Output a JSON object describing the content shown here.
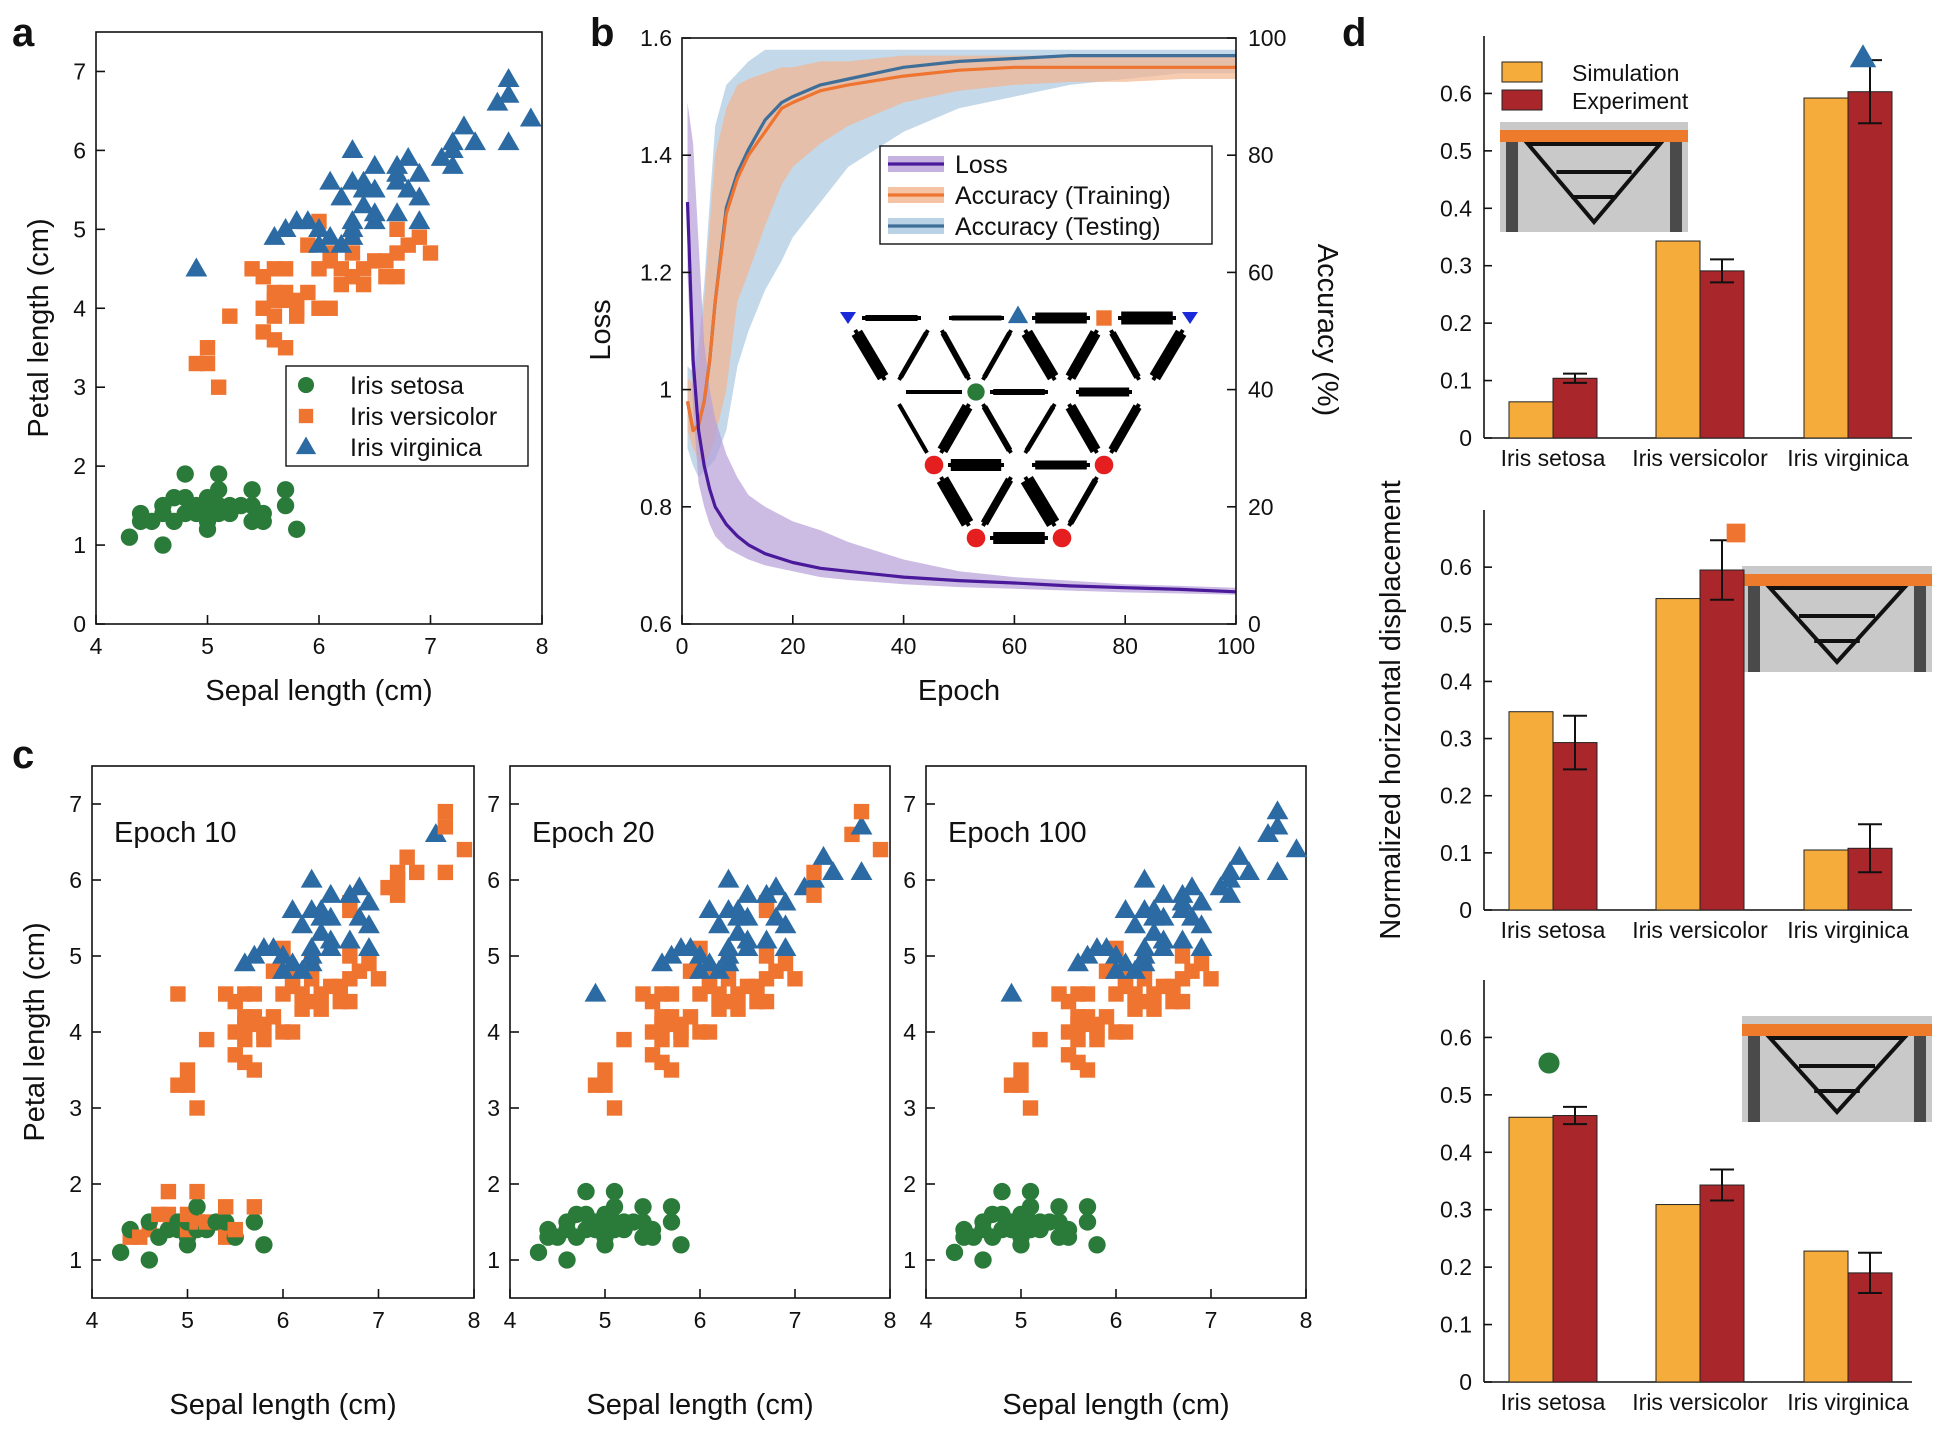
{
  "colors": {
    "setosa": "#2a7a3a",
    "versicolor": "#ee7430",
    "virginica": "#2b6aa3",
    "loss": "#4a1a9a",
    "loss_band": "#b79fd8",
    "acc_train": "#ee7430",
    "acc_train_band": "#f3b58e",
    "acc_test": "#3f6f99",
    "acc_test_band": "#a9c7df",
    "simulation": "#f5ac3a",
    "experiment": "#a9262a",
    "node_red": "#e51e20"
  },
  "panels": {
    "a": "a",
    "b": "b",
    "c": "c",
    "d": "d"
  },
  "chart_data": [
    {
      "id": "a",
      "type": "scatter",
      "title": "",
      "xlabel": "Sepal length (cm)",
      "ylabel": "Petal length (cm)",
      "xlim": [
        4,
        8
      ],
      "ylim": [
        0,
        7.5
      ],
      "xticks": [
        "4",
        "5",
        "6",
        "7",
        "8"
      ],
      "yticks": [
        "0",
        "1",
        "2",
        "3",
        "4",
        "5",
        "6",
        "7"
      ],
      "legend": [
        "Iris setosa",
        "Iris versicolor",
        "Iris virginica"
      ],
      "legend_position": "center-right",
      "series": [
        {
          "name": "Iris setosa",
          "marker": "circle",
          "points": [
            [
              4.3,
              1.1
            ],
            [
              4.4,
              1.3
            ],
            [
              4.4,
              1.4
            ],
            [
              4.5,
              1.3
            ],
            [
              4.6,
              1.0
            ],
            [
              4.6,
              1.4
            ],
            [
              4.6,
              1.5
            ],
            [
              4.7,
              1.3
            ],
            [
              4.7,
              1.6
            ],
            [
              4.8,
              1.4
            ],
            [
              4.8,
              1.6
            ],
            [
              4.8,
              1.9
            ],
            [
              4.9,
              1.4
            ],
            [
              4.9,
              1.5
            ],
            [
              5.0,
              1.2
            ],
            [
              5.0,
              1.3
            ],
            [
              5.0,
              1.4
            ],
            [
              5.0,
              1.5
            ],
            [
              5.0,
              1.6
            ],
            [
              5.1,
              1.4
            ],
            [
              5.1,
              1.5
            ],
            [
              5.1,
              1.7
            ],
            [
              5.1,
              1.9
            ],
            [
              5.2,
              1.4
            ],
            [
              5.2,
              1.5
            ],
            [
              5.3,
              1.5
            ],
            [
              5.4,
              1.3
            ],
            [
              5.4,
              1.5
            ],
            [
              5.4,
              1.7
            ],
            [
              5.5,
              1.3
            ],
            [
              5.5,
              1.4
            ],
            [
              5.7,
              1.5
            ],
            [
              5.7,
              1.7
            ],
            [
              5.8,
              1.2
            ]
          ]
        },
        {
          "name": "Iris versicolor",
          "marker": "square",
          "points": [
            [
              4.9,
              3.3
            ],
            [
              5.0,
              3.3
            ],
            [
              5.0,
              3.5
            ],
            [
              5.1,
              3.0
            ],
            [
              5.2,
              3.9
            ],
            [
              5.4,
              4.5
            ],
            [
              5.5,
              3.7
            ],
            [
              5.5,
              4.0
            ],
            [
              5.5,
              4.4
            ],
            [
              5.6,
              3.6
            ],
            [
              5.6,
              3.9
            ],
            [
              5.6,
              4.1
            ],
            [
              5.6,
              4.2
            ],
            [
              5.6,
              4.5
            ],
            [
              5.7,
              3.5
            ],
            [
              5.7,
              4.1
            ],
            [
              5.7,
              4.2
            ],
            [
              5.7,
              4.5
            ],
            [
              5.8,
              3.9
            ],
            [
              5.8,
              4.0
            ],
            [
              5.8,
              4.1
            ],
            [
              5.9,
              4.2
            ],
            [
              5.9,
              4.8
            ],
            [
              6.0,
              4.0
            ],
            [
              6.0,
              4.5
            ],
            [
              6.0,
              5.1
            ],
            [
              6.1,
              4.0
            ],
            [
              6.1,
              4.6
            ],
            [
              6.1,
              4.7
            ],
            [
              6.2,
              4.3
            ],
            [
              6.2,
              4.5
            ],
            [
              6.3,
              4.4
            ],
            [
              6.3,
              4.7
            ],
            [
              6.3,
              4.9
            ],
            [
              6.4,
              4.3
            ],
            [
              6.4,
              4.5
            ],
            [
              6.5,
              4.6
            ],
            [
              6.6,
              4.4
            ],
            [
              6.6,
              4.6
            ],
            [
              6.7,
              4.4
            ],
            [
              6.7,
              4.7
            ],
            [
              6.7,
              5.0
            ],
            [
              6.8,
              4.8
            ],
            [
              6.9,
              4.9
            ],
            [
              7.0,
              4.7
            ]
          ]
        },
        {
          "name": "Iris virginica",
          "marker": "triangle",
          "points": [
            [
              4.9,
              4.5
            ],
            [
              5.6,
              4.9
            ],
            [
              5.7,
              5.0
            ],
            [
              5.8,
              5.1
            ],
            [
              5.9,
              5.1
            ],
            [
              6.0,
              4.8
            ],
            [
              6.0,
              5.0
            ],
            [
              6.1,
              4.9
            ],
            [
              6.1,
              5.6
            ],
            [
              6.2,
              4.8
            ],
            [
              6.2,
              5.4
            ],
            [
              6.3,
              4.9
            ],
            [
              6.3,
              5.0
            ],
            [
              6.3,
              5.1
            ],
            [
              6.3,
              5.6
            ],
            [
              6.3,
              6.0
            ],
            [
              6.4,
              5.3
            ],
            [
              6.4,
              5.5
            ],
            [
              6.4,
              5.6
            ],
            [
              6.5,
              5.1
            ],
            [
              6.5,
              5.2
            ],
            [
              6.5,
              5.5
            ],
            [
              6.5,
              5.8
            ],
            [
              6.7,
              5.2
            ],
            [
              6.7,
              5.6
            ],
            [
              6.7,
              5.7
            ],
            [
              6.7,
              5.8
            ],
            [
              6.8,
              5.5
            ],
            [
              6.8,
              5.9
            ],
            [
              6.9,
              5.1
            ],
            [
              6.9,
              5.4
            ],
            [
              6.9,
              5.7
            ],
            [
              7.1,
              5.9
            ],
            [
              7.2,
              5.8
            ],
            [
              7.2,
              6.0
            ],
            [
              7.2,
              6.1
            ],
            [
              7.3,
              6.3
            ],
            [
              7.4,
              6.1
            ],
            [
              7.6,
              6.6
            ],
            [
              7.7,
              6.1
            ],
            [
              7.7,
              6.7
            ],
            [
              7.7,
              6.9
            ],
            [
              7.9,
              6.4
            ]
          ]
        }
      ]
    },
    {
      "id": "b",
      "type": "line",
      "xlabel": "Epoch",
      "ylabel": "Loss",
      "ylabel_right": "Accuracy (%)",
      "xlim": [
        0,
        100
      ],
      "ylim": [
        0.6,
        1.6
      ],
      "ylim_right": [
        0,
        100
      ],
      "xticks": [
        "0",
        "20",
        "40",
        "60",
        "80",
        "100"
      ],
      "yticks": [
        "0.6",
        "0.8",
        "1",
        "1.2",
        "1.4",
        "1.6"
      ],
      "yticks_right": [
        "0",
        "20",
        "40",
        "60",
        "80",
        "100"
      ],
      "legend": [
        "Loss",
        "Accuracy (Training)",
        "Accuracy (Testing)"
      ],
      "legend_position": "center-right",
      "series": [
        {
          "name": "Loss",
          "axis": "left",
          "x": [
            1,
            2,
            3,
            4,
            5,
            6,
            8,
            10,
            12,
            15,
            20,
            25,
            30,
            40,
            50,
            60,
            70,
            80,
            90,
            100
          ],
          "y": [
            1.32,
            1.05,
            0.93,
            0.87,
            0.83,
            0.8,
            0.77,
            0.75,
            0.735,
            0.72,
            0.705,
            0.695,
            0.69,
            0.68,
            0.674,
            0.67,
            0.665,
            0.662,
            0.659,
            0.655
          ],
          "band_upper": [
            1.49,
            1.42,
            1.25,
            1.08,
            1.0,
            0.95,
            0.89,
            0.85,
            0.82,
            0.8,
            0.775,
            0.76,
            0.74,
            0.71,
            0.69,
            0.68,
            0.674,
            0.668,
            0.665,
            0.662
          ],
          "band_lower": [
            1.2,
            0.97,
            0.84,
            0.8,
            0.77,
            0.75,
            0.73,
            0.72,
            0.71,
            0.7,
            0.69,
            0.68,
            0.675,
            0.668,
            0.663,
            0.66,
            0.657,
            0.654,
            0.652,
            0.65
          ]
        },
        {
          "name": "Accuracy (Training)",
          "axis": "right",
          "x": [
            1,
            2,
            3,
            4,
            5,
            6,
            8,
            10,
            12,
            15,
            18,
            20,
            25,
            30,
            40,
            50,
            60,
            70,
            80,
            90,
            100
          ],
          "y": [
            38,
            33,
            34,
            38,
            45,
            55,
            70,
            76,
            80,
            84,
            88,
            89,
            91,
            92,
            93.5,
            94.5,
            95,
            95,
            95,
            95,
            95
          ],
          "band_upper": [
            42,
            41,
            45,
            55,
            68,
            80,
            88,
            92,
            93,
            94,
            95,
            95,
            96,
            96,
            97,
            97,
            97,
            97,
            97,
            97,
            97
          ],
          "band_lower": [
            33,
            30,
            28,
            27,
            29,
            32,
            40,
            55,
            60,
            68,
            75,
            78,
            82,
            85,
            89,
            91,
            92,
            92.5,
            92.5,
            93,
            93
          ]
        },
        {
          "name": "Accuracy (Testing)",
          "axis": "right",
          "x": [
            1,
            2,
            3,
            4,
            5,
            6,
            8,
            10,
            12,
            15,
            18,
            20,
            25,
            30,
            40,
            50,
            60,
            70,
            80,
            90,
            100
          ],
          "y": [
            38,
            33,
            34,
            38,
            45,
            55,
            71,
            77,
            81,
            86,
            89,
            90,
            92,
            93,
            95,
            96,
            96.5,
            97,
            97,
            97,
            97
          ],
          "band_upper": [
            44,
            43,
            48,
            58,
            72,
            85,
            92,
            94,
            96,
            98,
            98,
            98,
            98,
            98,
            98,
            98,
            98,
            98,
            98,
            98,
            98
          ],
          "band_lower": [
            30,
            27,
            25,
            26,
            27,
            28,
            33,
            44,
            50,
            57,
            62,
            66,
            72,
            78,
            84,
            88,
            90,
            92,
            93,
            94,
            94
          ]
        }
      ]
    },
    {
      "id": "c",
      "type": "scatter",
      "xlabel": "Sepal length (cm)",
      "ylabel": "Petal length (cm)",
      "xlim": [
        4,
        8
      ],
      "ylim": [
        0.5,
        7.5
      ],
      "xticks": [
        "4",
        "5",
        "6",
        "7",
        "8"
      ],
      "yticks": [
        "1",
        "2",
        "3",
        "4",
        "5",
        "6",
        "7"
      ],
      "subplots": [
        {
          "label": "Epoch 10"
        },
        {
          "label": "Epoch 20"
        },
        {
          "label": "Epoch 100"
        }
      ]
    },
    {
      "id": "d",
      "type": "bar",
      "ylabel": "Normalized horizontal displacement",
      "categories": [
        "Iris setosa",
        "Iris versicolor",
        "Iris virginica"
      ],
      "legend": [
        "Simulation",
        "Experiment"
      ],
      "subplots": [
        {
          "ylim": [
            0,
            0.7
          ],
          "yticks": [
            "0",
            "0.1",
            "0.2",
            "0.3",
            "0.4",
            "0.5",
            "0.6"
          ],
          "target": "Iris virginica",
          "target_marker": "triangle",
          "series": [
            {
              "name": "Simulation",
              "values": [
                0.063,
                0.343,
                0.592
              ]
            },
            {
              "name": "Experiment",
              "values": [
                0.104,
                0.291,
                0.603
              ],
              "errors": [
                0.008,
                0.02,
                0.055
              ]
            }
          ]
        },
        {
          "ylim": [
            0,
            0.7
          ],
          "yticks": [
            "0",
            "0.1",
            "0.2",
            "0.3",
            "0.4",
            "0.5",
            "0.6"
          ],
          "target": "Iris versicolor",
          "target_marker": "square",
          "series": [
            {
              "name": "Simulation",
              "values": [
                0.347,
                0.545,
                0.105
              ]
            },
            {
              "name": "Experiment",
              "values": [
                0.293,
                0.595,
                0.108
              ],
              "errors": [
                0.047,
                0.052,
                0.042
              ]
            }
          ]
        },
        {
          "ylim": [
            0,
            0.7
          ],
          "yticks": [
            "0",
            "0.1",
            "0.2",
            "0.3",
            "0.4",
            "0.5",
            "0.6"
          ],
          "target": "Iris setosa",
          "target_marker": "circle",
          "series": [
            {
              "name": "Simulation",
              "values": [
                0.461,
                0.309,
                0.228
              ]
            },
            {
              "name": "Experiment",
              "values": [
                0.464,
                0.343,
                0.19
              ],
              "errors": [
                0.015,
                0.027,
                0.035
              ]
            }
          ]
        }
      ]
    }
  ]
}
